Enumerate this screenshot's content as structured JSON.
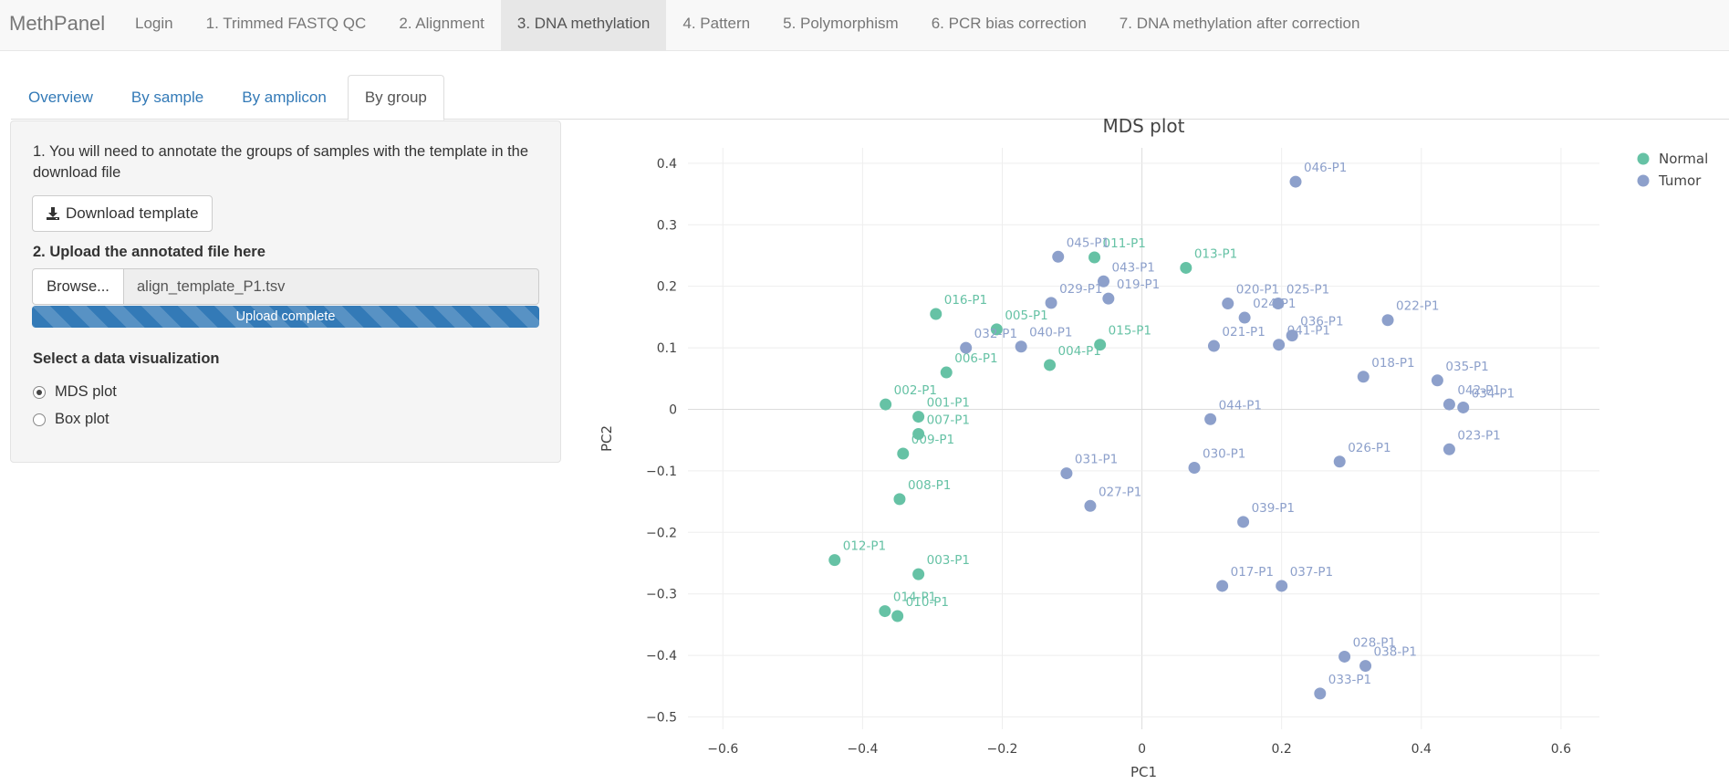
{
  "navbar": {
    "brand": "MethPanel",
    "items": [
      {
        "label": "Login",
        "active": false
      },
      {
        "label": "1. Trimmed FASTQ QC",
        "active": false
      },
      {
        "label": "2. Alignment",
        "active": false
      },
      {
        "label": "3. DNA methylation",
        "active": true
      },
      {
        "label": "4. Pattern",
        "active": false
      },
      {
        "label": "5. Polymorphism",
        "active": false
      },
      {
        "label": "6. PCR bias correction",
        "active": false
      },
      {
        "label": "7. DNA methylation after correction",
        "active": false
      }
    ]
  },
  "tabs": [
    {
      "label": "Overview",
      "active": false
    },
    {
      "label": "By sample",
      "active": false
    },
    {
      "label": "By amplicon",
      "active": false
    },
    {
      "label": "By group",
      "active": true
    }
  ],
  "sidebar": {
    "step1_text": "1. You will need to annotate the groups of samples with the template in the download file",
    "download_button": "Download template",
    "step2_label": "2. Upload the annotated file here",
    "browse_button": "Browse...",
    "file_name": "align_template_P1.tsv",
    "upload_status": "Upload complete",
    "upload_progress": 1.0,
    "viz_label": "Select a data visualization",
    "viz_options": [
      {
        "label": "MDS plot",
        "checked": true
      },
      {
        "label": "Box plot",
        "checked": false
      }
    ]
  },
  "chart_data": {
    "type": "scatter",
    "title": "MDS plot",
    "xlabel": "PC1",
    "ylabel": "PC2",
    "xlim": [
      -0.65,
      0.655
    ],
    "ylim": [
      -0.52,
      0.425
    ],
    "xticks": [
      -0.6,
      -0.4,
      -0.2,
      0,
      0.2,
      0.4,
      0.6
    ],
    "yticks": [
      -0.5,
      -0.4,
      -0.3,
      -0.2,
      -0.1,
      0,
      0.1,
      0.2,
      0.3,
      0.4
    ],
    "grid": true,
    "legend_position": "top-right",
    "series": [
      {
        "name": "Normal",
        "color": "#66c2a5",
        "points": [
          {
            "label": "001-P1",
            "x": -0.32,
            "y": -0.012
          },
          {
            "label": "002-P1",
            "x": -0.367,
            "y": 0.008
          },
          {
            "label": "003-P1",
            "x": -0.32,
            "y": -0.268
          },
          {
            "label": "004-P1",
            "x": -0.132,
            "y": 0.072
          },
          {
            "label": "005-P1",
            "x": -0.208,
            "y": 0.13
          },
          {
            "label": "006-P1",
            "x": -0.28,
            "y": 0.06
          },
          {
            "label": "007-P1",
            "x": -0.32,
            "y": -0.04
          },
          {
            "label": "008-P1",
            "x": -0.347,
            "y": -0.146
          },
          {
            "label": "009-P1",
            "x": -0.342,
            "y": -0.072
          },
          {
            "label": "010-P1",
            "x": -0.35,
            "y": -0.336
          },
          {
            "label": "011-P1",
            "x": -0.068,
            "y": 0.247
          },
          {
            "label": "012-P1",
            "x": -0.44,
            "y": -0.245
          },
          {
            "label": "013-P1",
            "x": 0.063,
            "y": 0.23
          },
          {
            "label": "014-P1",
            "x": -0.368,
            "y": -0.328
          },
          {
            "label": "015-P1",
            "x": -0.06,
            "y": 0.105
          },
          {
            "label": "016-P1",
            "x": -0.295,
            "y": 0.155
          }
        ]
      },
      {
        "name": "Tumor",
        "color": "#8da0cb",
        "points": [
          {
            "label": "017-P1",
            "x": 0.115,
            "y": -0.287
          },
          {
            "label": "018-P1",
            "x": 0.317,
            "y": 0.053
          },
          {
            "label": "019-P1",
            "x": -0.048,
            "y": 0.18
          },
          {
            "label": "020-P1",
            "x": 0.123,
            "y": 0.172
          },
          {
            "label": "021-P1",
            "x": 0.103,
            "y": 0.103
          },
          {
            "label": "022-P1",
            "x": 0.352,
            "y": 0.145
          },
          {
            "label": "023-P1",
            "x": 0.44,
            "y": -0.065
          },
          {
            "label": "024-P1",
            "x": 0.147,
            "y": 0.149
          },
          {
            "label": "025-P1",
            "x": 0.195,
            "y": 0.172
          },
          {
            "label": "026-P1",
            "x": 0.283,
            "y": -0.085
          },
          {
            "label": "027-P1",
            "x": -0.074,
            "y": -0.157
          },
          {
            "label": "028-P1",
            "x": 0.29,
            "y": -0.402
          },
          {
            "label": "029-P1",
            "x": -0.13,
            "y": 0.173
          },
          {
            "label": "030-P1",
            "x": 0.075,
            "y": -0.095
          },
          {
            "label": "031-P1",
            "x": -0.108,
            "y": -0.104
          },
          {
            "label": "032-P1",
            "x": -0.252,
            "y": 0.1
          },
          {
            "label": "033-P1",
            "x": 0.255,
            "y": -0.462
          },
          {
            "label": "034-P1",
            "x": 0.46,
            "y": 0.003
          },
          {
            "label": "035-P1",
            "x": 0.423,
            "y": 0.047
          },
          {
            "label": "036-P1",
            "x": 0.215,
            "y": 0.12
          },
          {
            "label": "037-P1",
            "x": 0.2,
            "y": -0.287
          },
          {
            "label": "038-P1",
            "x": 0.32,
            "y": -0.417
          },
          {
            "label": "039-P1",
            "x": 0.145,
            "y": -0.183
          },
          {
            "label": "040-P1",
            "x": -0.173,
            "y": 0.102
          },
          {
            "label": "041-P1",
            "x": 0.196,
            "y": 0.105
          },
          {
            "label": "042-P1",
            "x": 0.44,
            "y": 0.008
          },
          {
            "label": "043-P1",
            "x": -0.055,
            "y": 0.208
          },
          {
            "label": "044-P1",
            "x": 0.098,
            "y": -0.016
          },
          {
            "label": "045-P1",
            "x": -0.12,
            "y": 0.248
          },
          {
            "label": "046-P1",
            "x": 0.22,
            "y": 0.37
          }
        ]
      }
    ]
  }
}
